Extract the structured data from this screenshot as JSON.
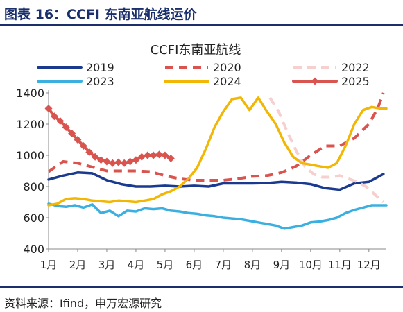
{
  "figure": {
    "title": "图表 16：CCFI 东南亚航线运价",
    "source": "资料来源：Ifind，申万宏源研究"
  },
  "chart_data": {
    "type": "line",
    "title": "CCFI东南亚航线",
    "xlabel": "",
    "ylabel": "",
    "ylim": [
      400,
      1400
    ],
    "yticks": [
      400,
      600,
      800,
      1000,
      1200,
      1400
    ],
    "xlim": [
      1,
      12.6
    ],
    "xticks": [
      1,
      2,
      3,
      4,
      5,
      6,
      7,
      8,
      9,
      10,
      11,
      12
    ],
    "xtick_labels": [
      "1月",
      "2月",
      "3月",
      "4月",
      "5月",
      "6月",
      "7月",
      "8月",
      "9月",
      "10月",
      "11月",
      "12月"
    ],
    "grid": false,
    "legend_position": "top",
    "series": [
      {
        "name": "2019",
        "color": "#1a3a8f",
        "style": "solid",
        "x": [
          1,
          1.5,
          2,
          2.5,
          3,
          3.5,
          4,
          4.5,
          5,
          5.5,
          6,
          6.5,
          7,
          7.5,
          8,
          8.5,
          9,
          9.5,
          10,
          10.5,
          11,
          11.5,
          12,
          12.5
        ],
        "y": [
          845,
          870,
          890,
          885,
          840,
          815,
          800,
          800,
          805,
          800,
          805,
          800,
          820,
          820,
          820,
          822,
          830,
          825,
          815,
          790,
          780,
          820,
          830,
          880
        ]
      },
      {
        "name": "2020",
        "color": "#d9544f",
        "style": "dashed",
        "x": [
          1,
          1.5,
          2,
          2.5,
          3,
          3.5,
          4,
          4.5,
          5,
          5.5,
          6,
          6.5,
          7,
          7.5,
          8,
          8.5,
          9,
          9.5,
          10,
          10.5,
          11,
          11.5,
          12,
          12.3,
          12.5
        ],
        "y": [
          895,
          960,
          950,
          925,
          900,
          900,
          900,
          895,
          870,
          850,
          840,
          840,
          840,
          850,
          865,
          870,
          890,
          930,
          1000,
          1060,
          1060,
          1110,
          1200,
          1300,
          1400
        ]
      },
      {
        "name": "2022",
        "color": "#f6cfcf",
        "style": "dashed",
        "x": [
          8.6,
          8.9,
          9.2,
          9.5,
          9.8,
          10.1,
          10.4,
          10.7,
          11,
          11.3,
          11.6,
          11.9,
          12.2,
          12.5
        ],
        "y": [
          1370,
          1280,
          1150,
          1030,
          930,
          880,
          860,
          860,
          870,
          850,
          830,
          800,
          750,
          700
        ]
      },
      {
        "name": "2023",
        "color": "#3bb0e0",
        "style": "solid",
        "x": [
          1,
          1.3,
          1.6,
          1.9,
          2.2,
          2.5,
          2.8,
          3.1,
          3.4,
          3.7,
          4,
          4.3,
          4.6,
          4.9,
          5.2,
          5.5,
          5.8,
          6.1,
          6.4,
          6.7,
          7,
          7.3,
          7.6,
          7.9,
          8.2,
          8.5,
          8.8,
          9.1,
          9.4,
          9.7,
          10,
          10.3,
          10.6,
          10.9,
          11.2,
          11.5,
          11.8,
          12.1,
          12.4,
          12.6
        ],
        "y": [
          690,
          675,
          670,
          680,
          665,
          685,
          630,
          645,
          610,
          645,
          640,
          660,
          655,
          660,
          645,
          640,
          630,
          625,
          615,
          610,
          600,
          595,
          590,
          580,
          570,
          560,
          550,
          530,
          540,
          550,
          570,
          575,
          585,
          600,
          630,
          650,
          665,
          680,
          680,
          680
        ]
      },
      {
        "name": "2024",
        "color": "#f2b705",
        "style": "solid",
        "x": [
          1,
          1.3,
          1.6,
          1.9,
          2.2,
          2.5,
          2.8,
          3.1,
          3.4,
          3.7,
          4,
          4.3,
          4.6,
          4.9,
          5.2,
          5.5,
          5.8,
          6.1,
          6.4,
          6.7,
          7,
          7.3,
          7.6,
          7.9,
          8.2,
          8.5,
          8.8,
          9.1,
          9.4,
          9.7,
          10,
          10.3,
          10.6,
          10.9,
          11.2,
          11.5,
          11.8,
          12.1,
          12.4,
          12.6
        ],
        "y": [
          680,
          690,
          720,
          725,
          720,
          710,
          705,
          700,
          710,
          705,
          700,
          710,
          720,
          750,
          770,
          800,
          850,
          920,
          1040,
          1180,
          1280,
          1360,
          1370,
          1290,
          1370,
          1280,
          1200,
          1080,
          990,
          950,
          940,
          930,
          920,
          950,
          1060,
          1200,
          1290,
          1310,
          1300,
          1300
        ]
      },
      {
        "name": "2025",
        "color": "#d9544f",
        "style": "marker",
        "x": [
          1,
          1.2,
          1.4,
          1.6,
          1.8,
          2,
          2.2,
          2.4,
          2.6,
          2.8,
          3,
          3.2,
          3.4,
          3.6,
          3.8,
          4,
          4.2,
          4.4,
          4.6,
          4.8,
          5,
          5.2
        ],
        "y": [
          1300,
          1250,
          1220,
          1180,
          1140,
          1100,
          1060,
          1020,
          990,
          970,
          960,
          950,
          955,
          950,
          960,
          970,
          990,
          1000,
          1000,
          1005,
          1000,
          980
        ]
      }
    ]
  }
}
